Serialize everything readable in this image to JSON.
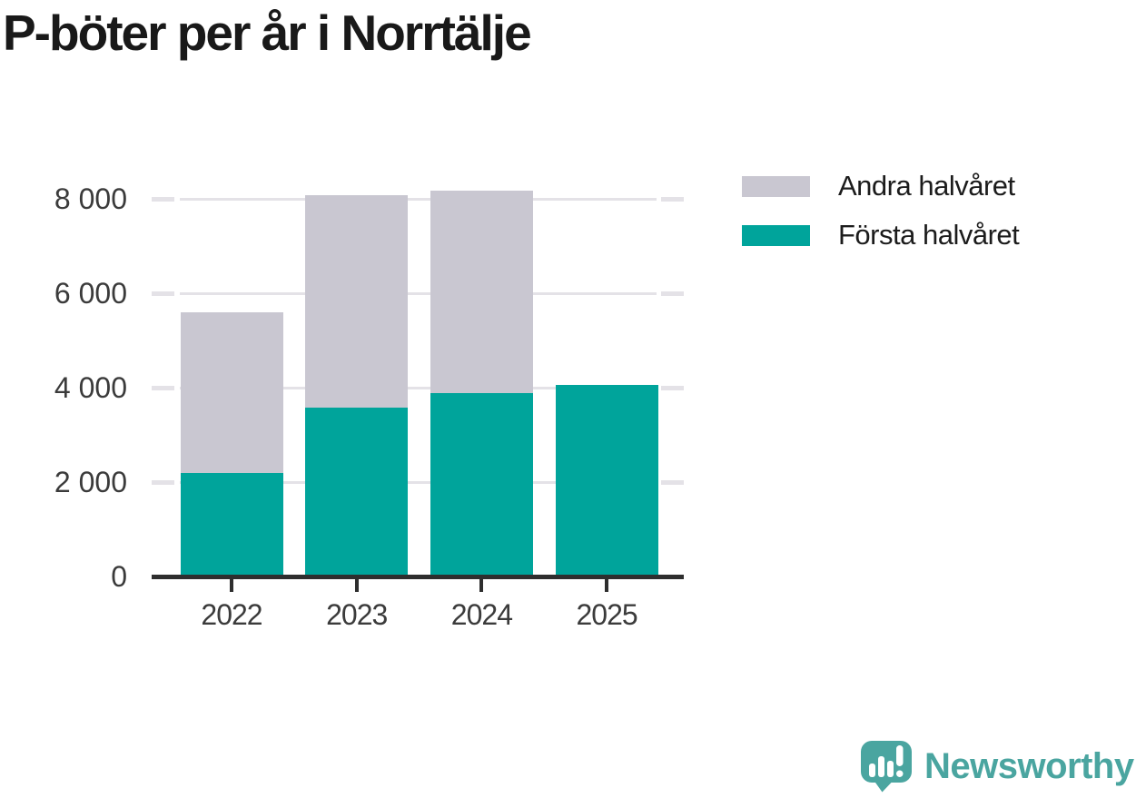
{
  "title": "P-böter per år i Norrtälje",
  "legend": {
    "items": [
      {
        "label": "Andra halvåret",
        "color": "#c9c7d1"
      },
      {
        "label": "Första halvåret",
        "color": "#00a49b"
      }
    ]
  },
  "chart_data": {
    "type": "bar",
    "stacked": true,
    "title": "P-böter per år i Norrtälje",
    "categories": [
      "2022",
      "2023",
      "2024",
      "2025"
    ],
    "series": [
      {
        "name": "Första halvåret",
        "color": "#00a49b",
        "values": [
          2200,
          3570,
          3880,
          4060
        ]
      },
      {
        "name": "Andra halvåret",
        "color": "#c9c7d1",
        "values": [
          3390,
          4510,
          4300,
          0
        ]
      }
    ],
    "totals": [
      5590,
      8080,
      8180,
      4060
    ],
    "xlabel": "",
    "ylabel": "",
    "ylim": [
      0,
      8400
    ],
    "yticks": [
      {
        "value": 0,
        "label": "0"
      },
      {
        "value": 2000,
        "label": "2 000"
      },
      {
        "value": 4000,
        "label": "4 000"
      },
      {
        "value": 6000,
        "label": "6 000"
      },
      {
        "value": 8000,
        "label": "8 000"
      }
    ],
    "grid": "horizontal",
    "legend_position": "top-right"
  },
  "branding": {
    "logo_text": "Newsworthy",
    "logo_color": "#4aa5a0",
    "icon_name": "newsworthy-speech-bubble-bar-chart-icon"
  },
  "colors": {
    "axis": "#2e2e2e",
    "gridline": "#e4e2e7",
    "tick_label": "#3b3b3b",
    "title": "#191919"
  }
}
